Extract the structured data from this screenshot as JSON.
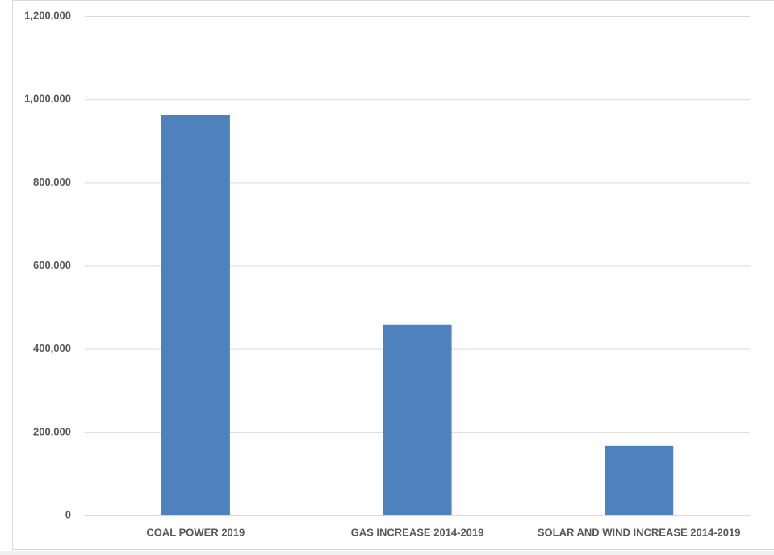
{
  "chart_data": {
    "type": "bar",
    "categories": [
      "COAL POWER 2019",
      "GAS INCREASE 2014-2019",
      "SOLAR AND WIND INCREASE 2014-2019"
    ],
    "values": [
      963000,
      458000,
      167000
    ],
    "color": "#4f81bd",
    "ylim": [
      0,
      1200000
    ],
    "yticks": [
      0,
      {
        "value": 200000,
        "label": "200,000"
      },
      {
        "value": 400000,
        "label": "400,000"
      },
      {
        "value": 600000,
        "label": "600,000"
      },
      {
        "value": 800000,
        "label": "800,000"
      },
      {
        "value": 1000000,
        "label": "1,000,000"
      },
      {
        "value": 1200000,
        "label": "1,200,000"
      }
    ],
    "grid": true
  }
}
